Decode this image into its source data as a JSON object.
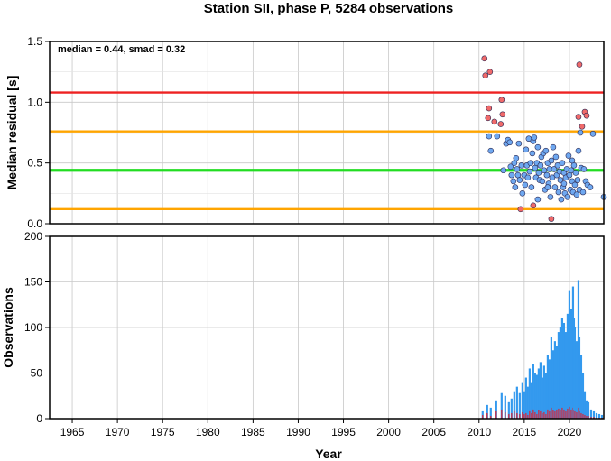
{
  "title": "Station SII, phase P, 5284 observations",
  "annotation": "median = 0.44, smad = 0.32",
  "chart_data": [
    {
      "type": "scatter",
      "ylabel": "Median residual [s]",
      "xlim": [
        1962.5,
        2023.8
      ],
      "ylim": [
        0.0,
        1.5
      ],
      "yticks": [
        "0.0",
        "0.5",
        "1.0",
        "1.5"
      ],
      "grid": true,
      "reference_lines": [
        {
          "name": "median",
          "value": 0.44,
          "color": "#22dd22"
        },
        {
          "name": "median - smad",
          "value": 0.12,
          "color": "#ffa500"
        },
        {
          "name": "median + smad",
          "value": 0.76,
          "color": "#ffa500"
        },
        {
          "name": "median + 2 smad",
          "value": 1.08,
          "color": "#ee2222"
        }
      ],
      "colors": {
        "inlier": "#6fa8f0",
        "outlier": "#f06a6a"
      },
      "points": [
        [
          2010.6,
          1.36,
          "out"
        ],
        [
          2010.7,
          1.22,
          "out"
        ],
        [
          2011.2,
          1.25,
          "out"
        ],
        [
          2011.1,
          0.95,
          "out"
        ],
        [
          2011.0,
          0.87,
          "out"
        ],
        [
          2011.7,
          0.84,
          "out"
        ],
        [
          2012.5,
          1.02,
          "out"
        ],
        [
          2012.6,
          0.9,
          "out"
        ],
        [
          2012.4,
          0.82,
          "out"
        ],
        [
          2014.6,
          0.12,
          "out"
        ],
        [
          2016.0,
          0.15,
          "out"
        ],
        [
          2018.0,
          0.04,
          "out"
        ],
        [
          2021.1,
          1.31,
          "out"
        ],
        [
          2021.7,
          0.92,
          "out"
        ],
        [
          2021.9,
          0.89,
          "out"
        ],
        [
          2021.4,
          0.8,
          "out"
        ],
        [
          2021.0,
          0.88,
          "out"
        ],
        [
          2011.1,
          0.72,
          "in"
        ],
        [
          2011.3,
          0.6,
          "in"
        ],
        [
          2012.0,
          0.72,
          "in"
        ],
        [
          2012.7,
          0.44,
          "in"
        ],
        [
          2013.0,
          0.66,
          "in"
        ],
        [
          2013.2,
          0.69,
          "in"
        ],
        [
          2013.4,
          0.67,
          "in"
        ],
        [
          2013.5,
          0.47,
          "in"
        ],
        [
          2013.6,
          0.4,
          "in"
        ],
        [
          2013.8,
          0.35,
          "in"
        ],
        [
          2013.9,
          0.5,
          "in"
        ],
        [
          2014.0,
          0.3,
          "in"
        ],
        [
          2014.1,
          0.54,
          "in"
        ],
        [
          2014.2,
          0.45,
          "in"
        ],
        [
          2014.3,
          0.4,
          "in"
        ],
        [
          2014.4,
          0.66,
          "in"
        ],
        [
          2014.5,
          0.36,
          "in"
        ],
        [
          2014.7,
          0.48,
          "in"
        ],
        [
          2014.8,
          0.25,
          "in"
        ],
        [
          2015.0,
          0.4,
          "in"
        ],
        [
          2015.1,
          0.32,
          "in"
        ],
        [
          2015.2,
          0.61,
          "in"
        ],
        [
          2015.3,
          0.48,
          "in"
        ],
        [
          2015.4,
          0.38,
          "in"
        ],
        [
          2015.5,
          0.7,
          "in"
        ],
        [
          2015.6,
          0.43,
          "in"
        ],
        [
          2015.7,
          0.5,
          "in"
        ],
        [
          2015.8,
          0.3,
          "in"
        ],
        [
          2015.9,
          0.58,
          "in"
        ],
        [
          2016.0,
          0.68,
          "in"
        ],
        [
          2016.1,
          0.71,
          "in"
        ],
        [
          2016.2,
          0.46,
          "in"
        ],
        [
          2016.3,
          0.38,
          "in"
        ],
        [
          2016.4,
          0.5,
          "in"
        ],
        [
          2016.5,
          0.63,
          "in"
        ],
        [
          2016.6,
          0.42,
          "in"
        ],
        [
          2016.7,
          0.36,
          "in"
        ],
        [
          2016.8,
          0.48,
          "in"
        ],
        [
          2016.9,
          0.55,
          "in"
        ],
        [
          2017.0,
          0.35,
          "in"
        ],
        [
          2017.1,
          0.58,
          "in"
        ],
        [
          2017.2,
          0.44,
          "in"
        ],
        [
          2017.3,
          0.28,
          "in"
        ],
        [
          2017.4,
          0.6,
          "in"
        ],
        [
          2017.5,
          0.4,
          "in"
        ],
        [
          2017.6,
          0.5,
          "in"
        ],
        [
          2017.7,
          0.33,
          "in"
        ],
        [
          2017.8,
          0.45,
          "in"
        ],
        [
          2017.9,
          0.22,
          "in"
        ],
        [
          2018.0,
          0.52,
          "in"
        ],
        [
          2018.1,
          0.38,
          "in"
        ],
        [
          2018.2,
          0.63,
          "in"
        ],
        [
          2018.3,
          0.45,
          "in"
        ],
        [
          2018.4,
          0.3,
          "in"
        ],
        [
          2018.5,
          0.55,
          "in"
        ],
        [
          2018.6,
          0.4,
          "in"
        ],
        [
          2018.7,
          0.48,
          "in"
        ],
        [
          2018.8,
          0.26,
          "in"
        ],
        [
          2018.9,
          0.43,
          "in"
        ],
        [
          2019.0,
          0.36,
          "in"
        ],
        [
          2019.1,
          0.2,
          "in"
        ],
        [
          2019.2,
          0.5,
          "in"
        ],
        [
          2019.3,
          0.3,
          "in"
        ],
        [
          2019.4,
          0.42,
          "in"
        ],
        [
          2019.5,
          0.25,
          "in"
        ],
        [
          2019.6,
          0.38,
          "in"
        ],
        [
          2019.7,
          0.45,
          "in"
        ],
        [
          2019.8,
          0.22,
          "in"
        ],
        [
          2019.9,
          0.56,
          "in"
        ],
        [
          2020.0,
          0.4,
          "in"
        ],
        [
          2020.1,
          0.28,
          "in"
        ],
        [
          2020.2,
          0.44,
          "in"
        ],
        [
          2020.3,
          0.35,
          "in"
        ],
        [
          2020.4,
          0.26,
          "in"
        ],
        [
          2020.5,
          0.48,
          "in"
        ],
        [
          2020.6,
          0.32,
          "in"
        ],
        [
          2020.7,
          0.42,
          "in"
        ],
        [
          2020.8,
          0.24,
          "in"
        ],
        [
          2020.9,
          0.36,
          "in"
        ],
        [
          2021.0,
          0.6,
          "in"
        ],
        [
          2021.1,
          0.28,
          "in"
        ],
        [
          2021.2,
          0.75,
          "in"
        ],
        [
          2021.3,
          0.46,
          "in"
        ],
        [
          2021.5,
          0.26,
          "in"
        ],
        [
          2021.6,
          0.45,
          "in"
        ],
        [
          2021.8,
          0.35,
          "in"
        ],
        [
          2022.0,
          0.32,
          "in"
        ],
        [
          2022.3,
          0.3,
          "in"
        ],
        [
          2022.6,
          0.74,
          "in"
        ],
        [
          2023.8,
          0.22,
          "in"
        ],
        [
          2016.5,
          0.2,
          "in"
        ],
        [
          2017.6,
          0.3,
          "in"
        ],
        [
          2019.4,
          0.33,
          "in"
        ],
        [
          2020.3,
          0.52,
          "in"
        ]
      ]
    },
    {
      "type": "bar",
      "xlabel": "Year",
      "ylabel": "Observations",
      "xlim": [
        1962.5,
        2023.8
      ],
      "ylim": [
        0,
        200
      ],
      "xticks": [
        "1965",
        "1970",
        "1975",
        "1980",
        "1985",
        "1990",
        "1995",
        "2000",
        "2005",
        "2010",
        "2015",
        "2020"
      ],
      "yticks": [
        "0",
        "50",
        "100",
        "150",
        "200"
      ],
      "grid": true,
      "colors": {
        "total": "#3399ee",
        "outliers": "#dd2233"
      },
      "bars": {
        "x": [
          2010.4,
          2010.9,
          2011.3,
          2011.9,
          2012.5,
          2012.9,
          2013.3,
          2013.6,
          2013.9,
          2014.2,
          2014.5,
          2014.8,
          2015.0,
          2015.2,
          2015.4,
          2015.6,
          2015.8,
          2016.0,
          2016.2,
          2016.4,
          2016.6,
          2016.8,
          2017.0,
          2017.2,
          2017.4,
          2017.6,
          2017.8,
          2018.0,
          2018.2,
          2018.4,
          2018.6,
          2018.8,
          2019.0,
          2019.2,
          2019.4,
          2019.6,
          2019.8,
          2020.0,
          2020.2,
          2020.4,
          2020.5,
          2020.6,
          2020.8,
          2021.0,
          2021.1,
          2021.3,
          2021.5,
          2021.7,
          2021.9,
          2022.1,
          2022.4,
          2022.7,
          2023.0,
          2023.3,
          2023.6
        ],
        "total": [
          8,
          15,
          12,
          20,
          28,
          25,
          18,
          22,
          30,
          35,
          28,
          40,
          30,
          45,
          35,
          55,
          40,
          60,
          50,
          48,
          55,
          62,
          45,
          58,
          50,
          70,
          65,
          90,
          75,
          85,
          80,
          95,
          100,
          110,
          105,
          95,
          115,
          140,
          120,
          145,
          110,
          100,
          85,
          152,
          90,
          70,
          50,
          30,
          20,
          18,
          10,
          8,
          6,
          5,
          4
        ],
        "outliers": [
          4,
          6,
          3,
          8,
          10,
          7,
          5,
          6,
          8,
          6,
          5,
          7,
          5,
          6,
          4,
          8,
          6,
          10,
          7,
          5,
          9,
          8,
          6,
          7,
          5,
          10,
          8,
          12,
          9,
          8,
          10,
          11,
          9,
          12,
          10,
          8,
          11,
          13,
          10,
          12,
          9,
          8,
          7,
          12,
          8,
          6,
          5,
          4,
          3,
          3,
          2,
          2,
          1,
          1,
          1
        ]
      }
    }
  ]
}
